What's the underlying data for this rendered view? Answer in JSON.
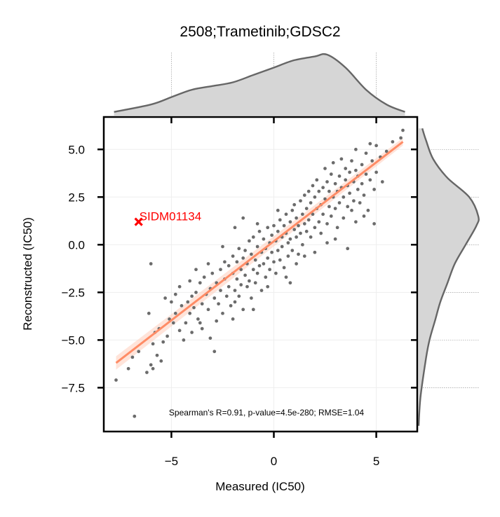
{
  "chart_data": {
    "type": "scatter",
    "title": "2508;Trametinib;GDSC2",
    "xlabel": "Measured (IC50)",
    "ylabel": "Reconstructed (IC50)",
    "xlim": [
      -8.3,
      7.0
    ],
    "ylim": [
      -9.8,
      6.7
    ],
    "xticks": [
      -5,
      0,
      5
    ],
    "xtick_labels": [
      "−5",
      "0",
      "5"
    ],
    "yticks": [
      5.0,
      2.5,
      0.0,
      -2.5,
      -5.0,
      -7.5
    ],
    "ytick_labels": [
      "5.0",
      "2.5",
      "0.0",
      "−2.5",
      "−5.0",
      "−7.5"
    ],
    "grid": true,
    "annotation": "Spearman's R=0.91, p-value=4.5e-280; RMSE=1.04",
    "colors": {
      "points": "#6b6b6b",
      "fit": "#ff8c66",
      "outlier": "#ff0000",
      "kde_fill": "#d6d6d6",
      "kde_line": "#666666"
    },
    "fit_line": {
      "x": [
        -7.7,
        6.3
      ],
      "y": [
        -6.2,
        5.4
      ]
    },
    "outlier": {
      "label": "SIDM01134",
      "x": -6.6,
      "y": 1.2,
      "marker": "x"
    },
    "points": [
      [
        -7.7,
        -7.1
      ],
      [
        -7.1,
        -6.5
      ],
      [
        -6.8,
        -9.0
      ],
      [
        -6.2,
        -6.7
      ],
      [
        -6.0,
        -6.3
      ],
      [
        -5.9,
        -6.5
      ],
      [
        -5.7,
        -5.8
      ],
      [
        -6.0,
        -1.0
      ],
      [
        -6.1,
        -3.6
      ],
      [
        -5.9,
        -5.2
      ],
      [
        -5.8,
        -4.6
      ],
      [
        -5.6,
        -4.4
      ],
      [
        -5.4,
        -5.1
      ],
      [
        -5.2,
        -4.8
      ],
      [
        -5.1,
        -3.9
      ],
      [
        -4.9,
        -4.1
      ],
      [
        -4.8,
        -3.6
      ],
      [
        -4.6,
        -2.2
      ],
      [
        -4.6,
        -4.5
      ],
      [
        -4.5,
        -3.2
      ],
      [
        -4.3,
        -4.1
      ],
      [
        -4.2,
        -3.0
      ],
      [
        -4.1,
        -3.6
      ],
      [
        -4.0,
        -2.7
      ],
      [
        -4.0,
        -4.6
      ],
      [
        -3.9,
        -3.3
      ],
      [
        -3.8,
        -2.5
      ],
      [
        -3.7,
        -3.9
      ],
      [
        -3.6,
        -2.0
      ],
      [
        -3.5,
        -3.1
      ],
      [
        -3.5,
        -4.4
      ],
      [
        -3.4,
        -1.7
      ],
      [
        -3.3,
        -2.6
      ],
      [
        -3.2,
        -3.4
      ],
      [
        -3.1,
        -2.3
      ],
      [
        -3.1,
        -4.9
      ],
      [
        -3.0,
        -1.5
      ],
      [
        -2.9,
        -2.8
      ],
      [
        -2.9,
        -5.6
      ],
      [
        -2.8,
        -2.0
      ],
      [
        -2.7,
        -3.1
      ],
      [
        -2.6,
        -1.3
      ],
      [
        -2.6,
        -2.4
      ],
      [
        -2.5,
        -3.6
      ],
      [
        -2.4,
        -1.8
      ],
      [
        -2.4,
        -0.9
      ],
      [
        -2.3,
        -2.7
      ],
      [
        -2.2,
        -1.1
      ],
      [
        -2.2,
        -2.2
      ],
      [
        -2.1,
        -3.2
      ],
      [
        -2.0,
        -1.5
      ],
      [
        -2.0,
        -0.6
      ],
      [
        -1.9,
        -2.4
      ],
      [
        -1.9,
        -3.0
      ],
      [
        -1.8,
        -0.9
      ],
      [
        -1.8,
        -1.8
      ],
      [
        -1.7,
        -2.7
      ],
      [
        -1.7,
        -0.2
      ],
      [
        -1.6,
        -1.3
      ],
      [
        -1.6,
        -2.1
      ],
      [
        -1.5,
        -0.7
      ],
      [
        -1.5,
        -3.4
      ],
      [
        -1.4,
        -1.6
      ],
      [
        -1.4,
        -0.3
      ],
      [
        -1.3,
        -2.2
      ],
      [
        -1.3,
        -1.0
      ],
      [
        -1.2,
        0.2
      ],
      [
        -1.2,
        -1.9
      ],
      [
        -1.1,
        -0.5
      ],
      [
        -1.1,
        -2.8
      ],
      [
        -1.0,
        -1.3
      ],
      [
        -1.0,
        0.4
      ],
      [
        -0.9,
        -0.8
      ],
      [
        -0.9,
        -2.0
      ],
      [
        -0.8,
        -0.1
      ],
      [
        -0.8,
        -1.5
      ],
      [
        -0.7,
        0.7
      ],
      [
        -0.7,
        -1.1
      ],
      [
        -0.6,
        -0.4
      ],
      [
        -0.6,
        -2.4
      ],
      [
        -0.5,
        0.3
      ],
      [
        -0.5,
        -1.0
      ],
      [
        -0.4,
        -0.2
      ],
      [
        -0.4,
        -1.7
      ],
      [
        -0.3,
        0.9
      ],
      [
        -0.3,
        -0.7
      ],
      [
        -0.2,
        0.1
      ],
      [
        -0.2,
        -1.3
      ],
      [
        -0.1,
        0.5
      ],
      [
        -0.1,
        -0.4
      ],
      [
        0.0,
        1.0
      ],
      [
        0.0,
        -0.9
      ],
      [
        0.1,
        0.2
      ],
      [
        0.1,
        -1.5
      ],
      [
        0.2,
        0.7
      ],
      [
        0.2,
        -0.3
      ],
      [
        0.3,
        1.3
      ],
      [
        0.3,
        -0.8
      ],
      [
        0.4,
        0.4
      ],
      [
        0.4,
        -0.1
      ],
      [
        0.5,
        1.0
      ],
      [
        0.5,
        -1.2
      ],
      [
        0.6,
        0.6
      ],
      [
        0.6,
        1.6
      ],
      [
        0.7,
        0.1
      ],
      [
        0.7,
        -0.6
      ],
      [
        0.8,
        1.2
      ],
      [
        0.8,
        0.3
      ],
      [
        0.9,
        1.8
      ],
      [
        0.9,
        -0.3
      ],
      [
        1.0,
        0.8
      ],
      [
        1.0,
        2.1
      ],
      [
        1.1,
        0.4
      ],
      [
        1.1,
        1.4
      ],
      [
        1.2,
        -0.5
      ],
      [
        1.2,
        1.0
      ],
      [
        1.3,
        2.3
      ],
      [
        1.3,
        0.6
      ],
      [
        1.4,
        1.6
      ],
      [
        1.4,
        0.0
      ],
      [
        1.5,
        2.6
      ],
      [
        1.5,
        1.1
      ],
      [
        1.6,
        0.7
      ],
      [
        1.6,
        1.9
      ],
      [
        1.7,
        2.8
      ],
      [
        1.7,
        1.3
      ],
      [
        1.8,
        0.4
      ],
      [
        1.8,
        2.2
      ],
      [
        1.9,
        1.6
      ],
      [
        1.9,
        3.1
      ],
      [
        2.0,
        0.9
      ],
      [
        2.0,
        2.5
      ],
      [
        2.1,
        1.9
      ],
      [
        2.1,
        3.4
      ],
      [
        2.2,
        1.2
      ],
      [
        2.2,
        2.8
      ],
      [
        2.3,
        2.1
      ],
      [
        2.3,
        0.6
      ],
      [
        2.4,
        3.0
      ],
      [
        2.4,
        1.6
      ],
      [
        2.5,
        2.4
      ],
      [
        2.5,
        4.0
      ],
      [
        2.6,
        1.1
      ],
      [
        2.6,
        3.3
      ],
      [
        2.7,
        2.0
      ],
      [
        2.7,
        2.8
      ],
      [
        2.8,
        3.7
      ],
      [
        2.8,
        1.5
      ],
      [
        2.9,
        2.5
      ],
      [
        2.9,
        4.3
      ],
      [
        3.0,
        1.9
      ],
      [
        3.0,
        3.2
      ],
      [
        3.1,
        2.8
      ],
      [
        3.1,
        0.9
      ],
      [
        3.2,
        3.6
      ],
      [
        3.2,
        2.2
      ],
      [
        3.3,
        3.0
      ],
      [
        3.3,
        4.5
      ],
      [
        3.4,
        2.5
      ],
      [
        3.4,
        1.4
      ],
      [
        3.5,
        3.4
      ],
      [
        3.5,
        4.0
      ],
      [
        3.6,
        2.0
      ],
      [
        3.6,
        3.1
      ],
      [
        3.7,
        3.8
      ],
      [
        3.7,
        2.7
      ],
      [
        3.8,
        4.4
      ],
      [
        3.8,
        1.8
      ],
      [
        3.9,
        3.3
      ],
      [
        3.9,
        2.3
      ],
      [
        4.0,
        3.9
      ],
      [
        4.0,
        5.0
      ],
      [
        4.1,
        2.9
      ],
      [
        4.1,
        3.6
      ],
      [
        4.2,
        2.2
      ],
      [
        4.3,
        4.2
      ],
      [
        4.3,
        3.2
      ],
      [
        4.4,
        2.6
      ],
      [
        4.5,
        4.8
      ],
      [
        4.5,
        3.7
      ],
      [
        4.6,
        1.8
      ],
      [
        4.7,
        3.4
      ],
      [
        4.8,
        4.4
      ],
      [
        4.9,
        2.9
      ],
      [
        5.0,
        5.2
      ],
      [
        5.0,
        3.8
      ],
      [
        5.2,
        4.6
      ],
      [
        5.3,
        3.3
      ],
      [
        4.7,
        5.3
      ],
      [
        4.4,
        1.5
      ],
      [
        5.5,
        4.9
      ],
      [
        5.8,
        5.4
      ],
      [
        6.2,
        5.6
      ],
      [
        6.3,
        6.0
      ],
      [
        4.9,
        1.1
      ],
      [
        3.6,
        -0.2
      ],
      [
        -2.5,
        -0.1
      ],
      [
        -1.9,
        0.9
      ],
      [
        0.6,
        -1.7
      ],
      [
        -3.6,
        -4.1
      ],
      [
        -4.4,
        -5.0
      ],
      [
        -5.0,
        -3.0
      ],
      [
        -0.8,
        1.1
      ],
      [
        -1.5,
        1.4
      ],
      [
        1.1,
        -1.0
      ],
      [
        2.0,
        -0.4
      ],
      [
        -2.8,
        -4.0
      ],
      [
        -3.8,
        -1.3
      ],
      [
        -0.3,
        -2.2
      ],
      [
        0.8,
        -2.0
      ],
      [
        -4.8,
        -2.6
      ],
      [
        -5.5,
        -6.1
      ],
      [
        -3.2,
        -1.0
      ],
      [
        -2.0,
        -3.9
      ],
      [
        -1.0,
        -3.4
      ],
      [
        0.2,
        1.8
      ],
      [
        1.5,
        -0.6
      ],
      [
        2.6,
        0.1
      ],
      [
        3.0,
        0.3
      ],
      [
        4.0,
        1.2
      ],
      [
        -6.6,
        -5.6
      ],
      [
        -6.9,
        -5.9
      ],
      [
        -5.3,
        -2.8
      ],
      [
        -4.1,
        -1.9
      ]
    ],
    "kde_x": [
      [
        -7.8,
        0.01
      ],
      [
        -6,
        0.03
      ],
      [
        -5,
        0.05
      ],
      [
        -4,
        0.07
      ],
      [
        -3,
        0.08
      ],
      [
        -2,
        0.09
      ],
      [
        -1,
        0.11
      ],
      [
        0,
        0.13
      ],
      [
        1,
        0.15
      ],
      [
        2,
        0.16
      ],
      [
        2.6,
        0.165
      ],
      [
        3.5,
        0.13
      ],
      [
        4.5,
        0.07
      ],
      [
        5.5,
        0.03
      ],
      [
        6.4,
        0.01
      ]
    ],
    "kde_y": [
      [
        -9.5,
        0.0
      ],
      [
        -8,
        0.005
      ],
      [
        -6,
        0.02
      ],
      [
        -5,
        0.03
      ],
      [
        -4,
        0.045
      ],
      [
        -3,
        0.06
      ],
      [
        -2,
        0.08
      ],
      [
        -1,
        0.1
      ],
      [
        0,
        0.13
      ],
      [
        1,
        0.16
      ],
      [
        1.5,
        0.165
      ],
      [
        2.5,
        0.14
      ],
      [
        3.5,
        0.08
      ],
      [
        4.5,
        0.04
      ],
      [
        5.5,
        0.02
      ],
      [
        6.1,
        0.01
      ]
    ]
  }
}
